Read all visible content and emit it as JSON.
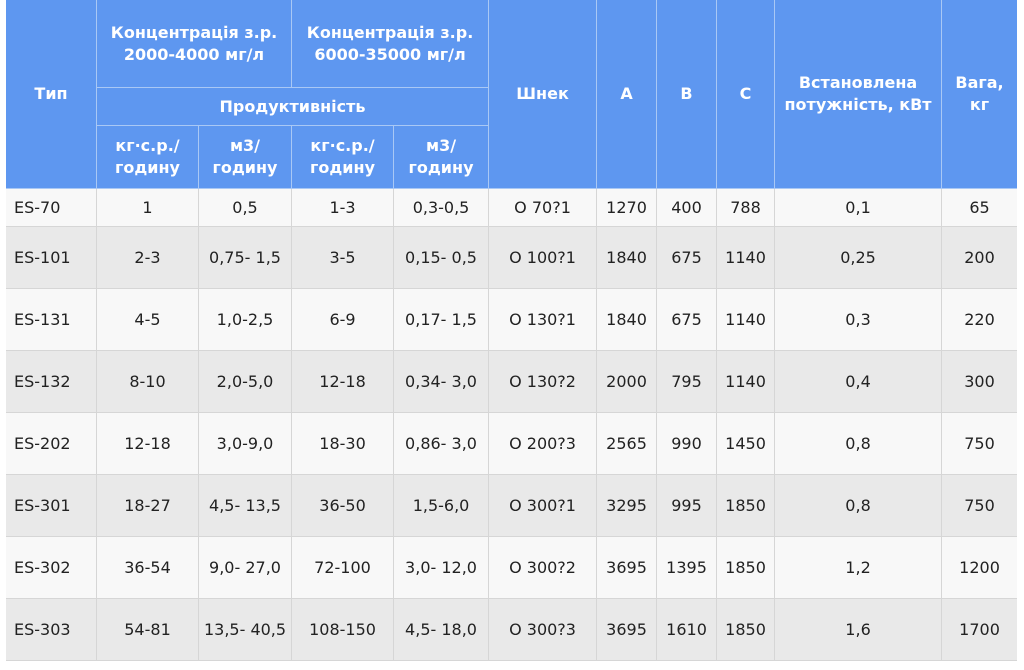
{
  "headers": {
    "type": "Тип",
    "conc_low": "Концентрація з.р. 2000-4000 мг/л",
    "conc_high": "Концентрація з.р. 6000-35000 мг/л",
    "productivity": "Продуктивність",
    "kg_hour": "кг·с.р./ годину",
    "m3_hour": "м3/ годину",
    "screw": "Шнек",
    "a": "A",
    "b": "B",
    "c": "C",
    "power": "Встановлена потужність, кВт",
    "weight": "Вага, кг"
  },
  "rows": [
    {
      "type": "ES-70",
      "kg1": "1",
      "m31": "0,5",
      "kg2": "1-3",
      "m32": "0,3-0,5",
      "screw": "О 70?1",
      "a": "1270",
      "b": "400",
      "c": "788",
      "power": "0,1",
      "weight": "65"
    },
    {
      "type": "ES-101",
      "kg1": "2-3",
      "m31": "0,75- 1,5",
      "kg2": "3-5",
      "m32": "0,15- 0,5",
      "screw": "О 100?1",
      "a": "1840",
      "b": "675",
      "c": "1140",
      "power": "0,25",
      "weight": "200"
    },
    {
      "type": "ES-131",
      "kg1": "4-5",
      "m31": "1,0-2,5",
      "kg2": "6-9",
      "m32": "0,17- 1,5",
      "screw": "О 130?1",
      "a": "1840",
      "b": "675",
      "c": "1140",
      "power": "0,3",
      "weight": "220"
    },
    {
      "type": "ES-132",
      "kg1": "8-10",
      "m31": "2,0-5,0",
      "kg2": "12-18",
      "m32": "0,34- 3,0",
      "screw": "О 130?2",
      "a": "2000",
      "b": "795",
      "c": "1140",
      "power": "0,4",
      "weight": "300"
    },
    {
      "type": "ES-202",
      "kg1": "12-18",
      "m31": "3,0-9,0",
      "kg2": "18-30",
      "m32": "0,86- 3,0",
      "screw": "О 200?3",
      "a": "2565",
      "b": "990",
      "c": "1450",
      "power": "0,8",
      "weight": "750"
    },
    {
      "type": "ES-301",
      "kg1": "18-27",
      "m31": "4,5- 13,5",
      "kg2": "36-50",
      "m32": "1,5-6,0",
      "screw": "О 300?1",
      "a": "3295",
      "b": "995",
      "c": "1850",
      "power": "0,8",
      "weight": "750"
    },
    {
      "type": "ES-302",
      "kg1": "36-54",
      "m31": "9,0- 27,0",
      "kg2": "72-100",
      "m32": "3,0- 12,0",
      "screw": "О 300?2",
      "a": "3695",
      "b": "1395",
      "c": "1850",
      "power": "1,2",
      "weight": "1200"
    },
    {
      "type": "ES-303",
      "kg1": "54-81",
      "m31": "13,5- 40,5",
      "kg2": "108-150",
      "m32": "4,5- 18,0",
      "screw": "О 300?3",
      "a": "3695",
      "b": "1610",
      "c": "1850",
      "power": "1,6",
      "weight": "1700"
    }
  ]
}
